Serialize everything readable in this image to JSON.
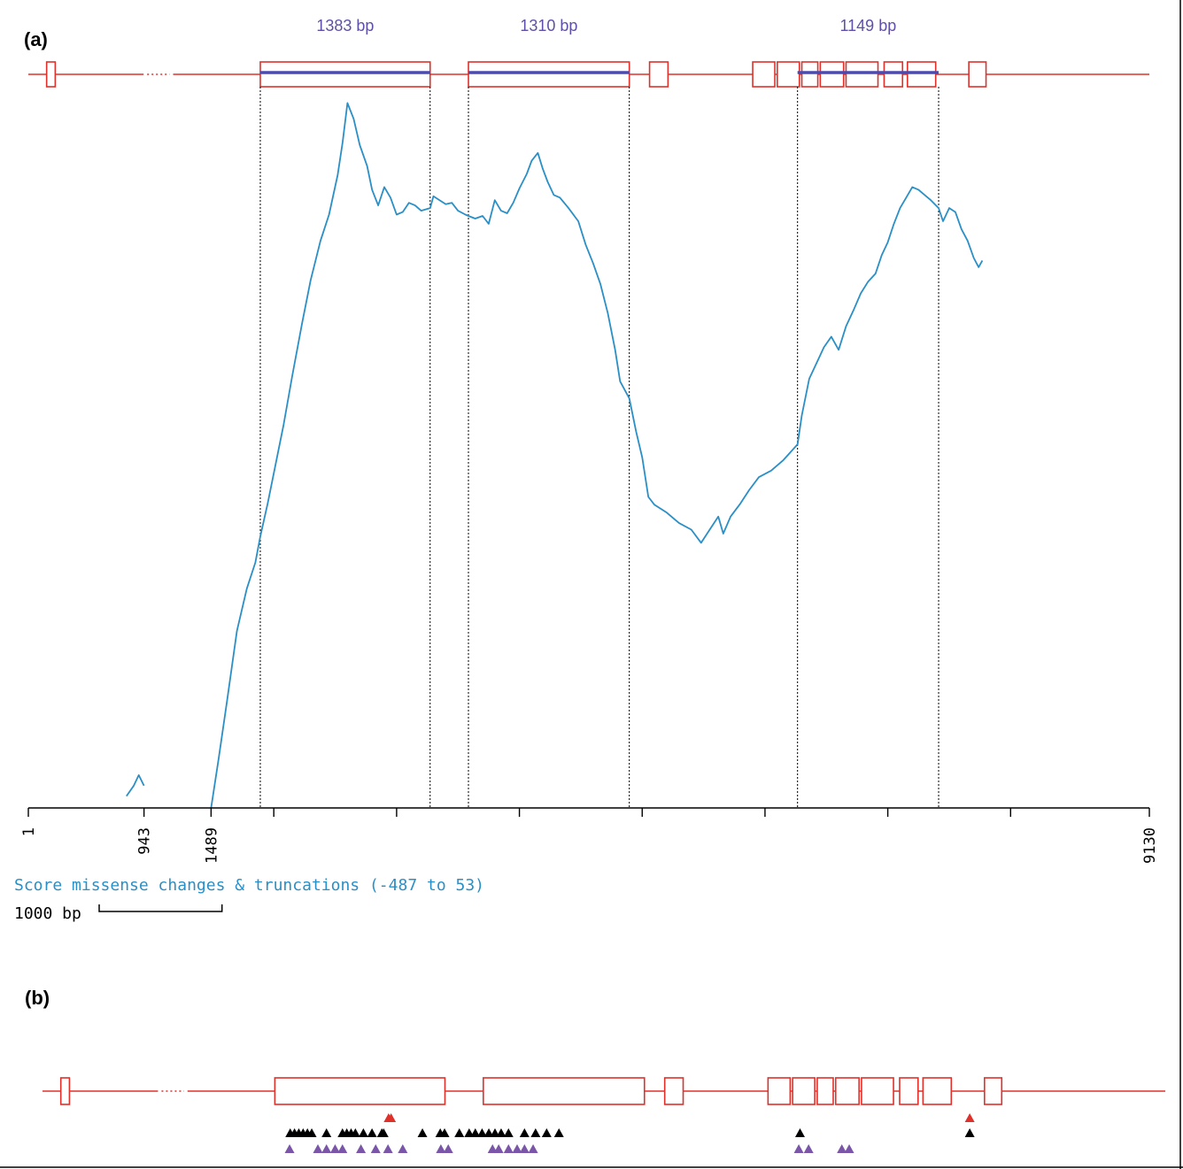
{
  "panel_a": {
    "label": "(a)"
  },
  "panel_b": {
    "label": "(b)"
  },
  "colors": {
    "gene": "#e0302a",
    "segment": "#4a4ab0",
    "segment_label": "#5e50a8",
    "trace": "#2a8fc6",
    "axis": "#000000",
    "marker_black": "#000000",
    "marker_red": "#e0302a",
    "marker_purple": "#7b55a8"
  },
  "chart_data": {
    "type": "line",
    "title": "",
    "ylabel": "Score missense changes & truncations (-487 to 53)",
    "ylim": [
      -487,
      53
    ],
    "xlim": [
      1,
      9130
    ],
    "x_ticks": [
      "1",
      "943",
      "1489",
      "9130"
    ],
    "scale_bar": {
      "label": "1000 bp",
      "length_bp": 1000
    },
    "segments": [
      {
        "label": "1383 bp",
        "start": 1890,
        "end": 3273
      },
      {
        "label": "1310 bp",
        "start": 3585,
        "end": 4895
      },
      {
        "label": "1149 bp",
        "start": 6265,
        "end": 7414
      }
    ],
    "series": [
      {
        "points": [
          [
            800,
            -478
          ],
          [
            860,
            -470
          ],
          [
            900,
            -462
          ],
          [
            943,
            -470
          ]
        ]
      },
      {
        "points": [
          [
            1489,
            -487
          ],
          [
            1550,
            -450
          ],
          [
            1620,
            -405
          ],
          [
            1700,
            -352
          ],
          [
            1780,
            -320
          ],
          [
            1850,
            -300
          ],
          [
            1890,
            -280
          ],
          [
            1950,
            -255
          ],
          [
            2000,
            -232
          ],
          [
            2080,
            -195
          ],
          [
            2150,
            -158
          ],
          [
            2230,
            -118
          ],
          [
            2300,
            -85
          ],
          [
            2380,
            -55
          ],
          [
            2450,
            -35
          ],
          [
            2520,
            -5
          ],
          [
            2560,
            20
          ],
          [
            2600,
            50
          ],
          [
            2650,
            38
          ],
          [
            2700,
            18
          ],
          [
            2760,
            2
          ],
          [
            2800,
            -16
          ],
          [
            2850,
            -28
          ],
          [
            2900,
            -14
          ],
          [
            2950,
            -22
          ],
          [
            3000,
            -35
          ],
          [
            3050,
            -33
          ],
          [
            3100,
            -26
          ],
          [
            3150,
            -28
          ],
          [
            3200,
            -32
          ],
          [
            3273,
            -30
          ],
          [
            3300,
            -21
          ],
          [
            3350,
            -24
          ],
          [
            3400,
            -27
          ],
          [
            3450,
            -26
          ],
          [
            3500,
            -32
          ],
          [
            3560,
            -35
          ],
          [
            3585,
            -36
          ],
          [
            3640,
            -38
          ],
          [
            3700,
            -36
          ],
          [
            3750,
            -42
          ],
          [
            3800,
            -24
          ],
          [
            3850,
            -32
          ],
          [
            3900,
            -34
          ],
          [
            3950,
            -26
          ],
          [
            4000,
            -15
          ],
          [
            4060,
            -4
          ],
          [
            4100,
            6
          ],
          [
            4150,
            12
          ],
          [
            4190,
            0
          ],
          [
            4230,
            -10
          ],
          [
            4280,
            -20
          ],
          [
            4330,
            -22
          ],
          [
            4400,
            -30
          ],
          [
            4480,
            -40
          ],
          [
            4540,
            -58
          ],
          [
            4600,
            -72
          ],
          [
            4660,
            -88
          ],
          [
            4720,
            -110
          ],
          [
            4780,
            -138
          ],
          [
            4820,
            -162
          ],
          [
            4895,
            -175
          ],
          [
            4950,
            -200
          ],
          [
            5000,
            -220
          ],
          [
            5050,
            -250
          ],
          [
            5100,
            -256
          ],
          [
            5200,
            -262
          ],
          [
            5300,
            -270
          ],
          [
            5400,
            -275
          ],
          [
            5480,
            -285
          ],
          [
            5550,
            -275
          ],
          [
            5620,
            -265
          ],
          [
            5660,
            -278
          ],
          [
            5720,
            -265
          ],
          [
            5800,
            -255
          ],
          [
            5870,
            -245
          ],
          [
            5950,
            -235
          ],
          [
            6050,
            -230
          ],
          [
            6150,
            -222
          ],
          [
            6265,
            -210
          ],
          [
            6300,
            -188
          ],
          [
            6360,
            -160
          ],
          [
            6420,
            -148
          ],
          [
            6480,
            -136
          ],
          [
            6540,
            -128
          ],
          [
            6600,
            -138
          ],
          [
            6660,
            -120
          ],
          [
            6720,
            -108
          ],
          [
            6780,
            -95
          ],
          [
            6840,
            -86
          ],
          [
            6900,
            -80
          ],
          [
            6950,
            -66
          ],
          [
            7000,
            -56
          ],
          [
            7050,
            -42
          ],
          [
            7100,
            -30
          ],
          [
            7150,
            -22
          ],
          [
            7200,
            -14
          ],
          [
            7250,
            -16
          ],
          [
            7300,
            -20
          ],
          [
            7350,
            -24
          ],
          [
            7414,
            -30
          ],
          [
            7450,
            -40
          ],
          [
            7500,
            -30
          ],
          [
            7550,
            -33
          ],
          [
            7600,
            -46
          ],
          [
            7650,
            -55
          ],
          [
            7700,
            -68
          ],
          [
            7740,
            -75
          ],
          [
            7770,
            -70
          ]
        ]
      }
    ]
  },
  "gene_model": {
    "exons": [
      [
        150,
        220
      ],
      [
        1890,
        3273
      ],
      [
        3585,
        4895
      ],
      [
        5060,
        5210
      ],
      [
        5900,
        6080
      ],
      [
        6100,
        6280
      ],
      [
        6300,
        6430
      ],
      [
        6450,
        6640
      ],
      [
        6660,
        6920
      ],
      [
        6970,
        7120
      ],
      [
        7160,
        7390
      ],
      [
        7660,
        7800
      ]
    ],
    "gap_start": 940,
    "gap_end": 1180
  },
  "variants": {
    "red": [
      2815,
      2835,
      7540
    ],
    "black": [
      2015,
      2050,
      2085,
      2120,
      2155,
      2190,
      2310,
      2440,
      2475,
      2510,
      2545,
      2610,
      2680,
      2760,
      2775,
      3090,
      3235,
      3270,
      3390,
      3470,
      3520,
      3575,
      3630,
      3680,
      3730,
      3790,
      3920,
      4010,
      4100,
      4200,
      6160,
      7540
    ],
    "purple": [
      2010,
      2240,
      2310,
      2380,
      2440,
      2590,
      2710,
      2810,
      2930,
      3240,
      3300,
      3660,
      3710,
      3790,
      3860,
      3920,
      3990,
      6150,
      6230,
      6500,
      6560
    ]
  }
}
